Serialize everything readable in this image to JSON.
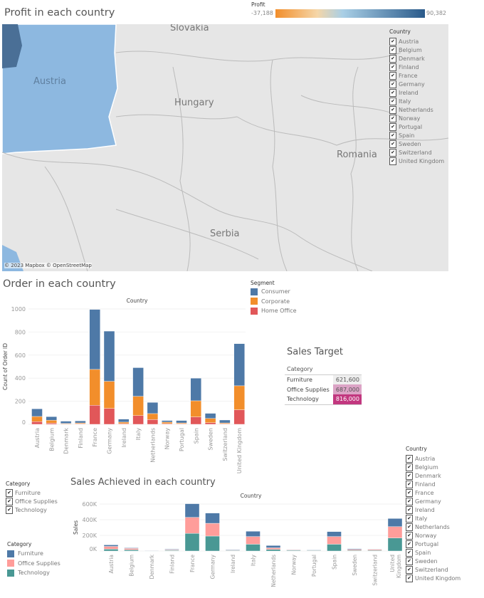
{
  "profit_map": {
    "title": "Profit in each country",
    "legend": {
      "label": "Profit",
      "min": "-37,188",
      "max": "90,382",
      "colors": [
        "#f28e2b",
        "#f5d6a8",
        "#a9cfe6",
        "#2a5a8a"
      ]
    },
    "place_labels": [
      "Slovakia",
      "Austria",
      "Hungary",
      "Romania",
      "Serbia"
    ],
    "attribution": "© 2023 Mapbox © OpenStreetMap",
    "highlight_color": "#8db8e0"
  },
  "country_filter_label": "Country",
  "countries": [
    "Austria",
    "Belgium",
    "Denmark",
    "Finland",
    "France",
    "Germany",
    "Ireland",
    "Italy",
    "Netherlands",
    "Norway",
    "Portugal",
    "Spain",
    "Sweden",
    "Switzerland",
    "United Kingdom"
  ],
  "segment_legend": {
    "title": "Segment",
    "items": [
      {
        "label": "Consumer",
        "color": "#4e79a7"
      },
      {
        "label": "Corporate",
        "color": "#f28e2b"
      },
      {
        "label": "Home Office",
        "color": "#e15759"
      }
    ]
  },
  "sales_target": {
    "title": "Sales Target",
    "header": "Category",
    "rows": [
      {
        "category": "Furniture",
        "value": "621,600",
        "color": "#eeeeee",
        "text": "#555"
      },
      {
        "category": "Office Supplies",
        "value": "687,000",
        "color": "#dca4c6",
        "text": "#555"
      },
      {
        "category": "Technology",
        "value": "816,000",
        "color": "#c2377f",
        "text": "#ffffff"
      }
    ]
  },
  "category_filter": {
    "title": "Category",
    "items": [
      "Furniture",
      "Office Supplies",
      "Technology"
    ]
  },
  "category_legend": {
    "title": "Category",
    "items": [
      {
        "label": "Furniture",
        "color": "#4e79a7"
      },
      {
        "label": "Office Supplies",
        "color": "#ff9d9a"
      },
      {
        "label": "Technology",
        "color": "#499894"
      }
    ]
  },
  "chart_data": [
    {
      "type": "bar",
      "stacked": true,
      "title": "Order in each country",
      "xlabel": "Country",
      "ylabel": "Count of Order ID",
      "ylim": [
        0,
        1000
      ],
      "yticks": [
        "0",
        "200",
        "400",
        "600",
        "800",
        "1000"
      ],
      "ytick_values": [
        0,
        200,
        400,
        600,
        800,
        1000
      ],
      "categories": [
        "Austria",
        "Belgium",
        "Denmark",
        "Finland",
        "France",
        "Germany",
        "Ireland",
        "Italy",
        "Netherlands",
        "Norway",
        "Portugal",
        "Spain",
        "Sweden",
        "Switzerland",
        "United Kingdom"
      ],
      "series": [
        {
          "name": "Home Office",
          "color": "#e15759",
          "values": [
            23,
            10,
            3,
            4,
            165,
            138,
            6,
            76,
            41,
            6,
            4,
            64,
            14,
            4,
            126
          ]
        },
        {
          "name": "Corporate",
          "color": "#f28e2b",
          "values": [
            45,
            25,
            5,
            8,
            311,
            235,
            13,
            167,
            52,
            13,
            8,
            140,
            37,
            8,
            208
          ]
        },
        {
          "name": "Consumer",
          "color": "#4e79a7",
          "values": [
            66,
            31,
            19,
            17,
            520,
            435,
            26,
            248,
            97,
            14,
            21,
            196,
            44,
            25,
            365
          ]
        }
      ]
    },
    {
      "type": "bar",
      "stacked": true,
      "title": "Sales Achieved in each country",
      "xlabel": "Country",
      "ylabel": "Sales",
      "ylim": [
        0,
        600000
      ],
      "yticks": [
        "0K",
        "200K",
        "400K",
        "600K"
      ],
      "ytick_values": [
        0,
        200000,
        400000,
        600000
      ],
      "categories": [
        "Austria",
        "Belgium",
        "Denmark",
        "Finland",
        "France",
        "Germany",
        "Ireland",
        "Italy",
        "Netherlands",
        "Norway",
        "Portugal",
        "Spain",
        "Sweden",
        "Switzerland",
        "United Kingdom"
      ],
      "series": [
        {
          "name": "Technology",
          "color": "#499894",
          "values": [
            24000,
            15000,
            3000,
            9000,
            226000,
            191000,
            6000,
            87000,
            20000,
            9000,
            6000,
            87000,
            9000,
            9000,
            167000
          ]
        },
        {
          "name": "Office Supplies",
          "color": "#ff9d9a",
          "values": [
            35000,
            18000,
            3000,
            8000,
            204000,
            163000,
            7000,
            98000,
            21000,
            6000,
            5000,
            98000,
            11000,
            11000,
            144000
          ]
        },
        {
          "name": "Furniture",
          "color": "#4e79a7",
          "values": [
            19000,
            8000,
            3000,
            7000,
            174000,
            131000,
            6000,
            67000,
            29000,
            5000,
            6000,
            63000,
            10000,
            6000,
            104000
          ]
        }
      ]
    }
  ]
}
